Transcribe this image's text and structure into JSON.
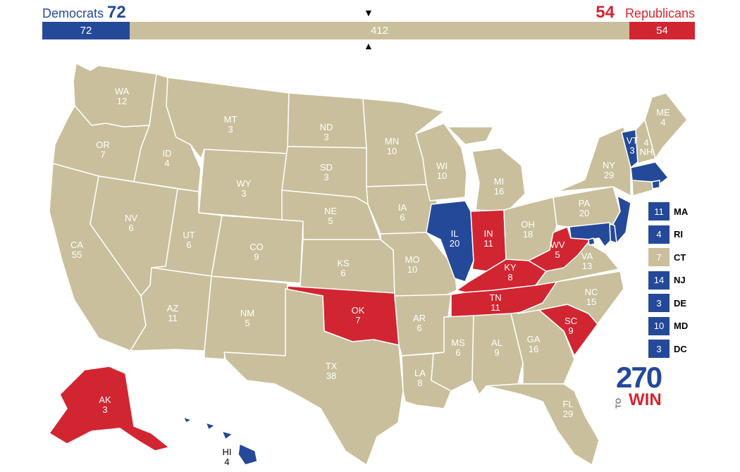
{
  "colors": {
    "dem": "#244999",
    "rep": "#d22532",
    "tossup": "#c9bf9c",
    "border": "#ffffff"
  },
  "header": {
    "dem_label": "Democrats",
    "dem_total": "72",
    "rep_total": "54",
    "rep_label": "Republicans"
  },
  "tally": {
    "dem": "72",
    "tossup": "412",
    "rep": "54",
    "dem_ev": 72,
    "tossup_ev": 412,
    "rep_ev": 54
  },
  "states": [
    {
      "abbr": "WA",
      "ev": "12",
      "party": "tossup"
    },
    {
      "abbr": "OR",
      "ev": "7",
      "party": "tossup"
    },
    {
      "abbr": "CA",
      "ev": "55",
      "party": "tossup"
    },
    {
      "abbr": "ID",
      "ev": "4",
      "party": "tossup"
    },
    {
      "abbr": "NV",
      "ev": "6",
      "party": "tossup"
    },
    {
      "abbr": "MT",
      "ev": "3",
      "party": "tossup"
    },
    {
      "abbr": "WY",
      "ev": "3",
      "party": "tossup"
    },
    {
      "abbr": "UT",
      "ev": "6",
      "party": "tossup"
    },
    {
      "abbr": "AZ",
      "ev": "11",
      "party": "tossup"
    },
    {
      "abbr": "CO",
      "ev": "9",
      "party": "tossup"
    },
    {
      "abbr": "NM",
      "ev": "5",
      "party": "tossup"
    },
    {
      "abbr": "ND",
      "ev": "3",
      "party": "tossup"
    },
    {
      "abbr": "SD",
      "ev": "3",
      "party": "tossup"
    },
    {
      "abbr": "NE",
      "ev": "5",
      "party": "tossup"
    },
    {
      "abbr": "KS",
      "ev": "6",
      "party": "tossup"
    },
    {
      "abbr": "OK",
      "ev": "7",
      "party": "rep"
    },
    {
      "abbr": "TX",
      "ev": "38",
      "party": "tossup"
    },
    {
      "abbr": "MN",
      "ev": "10",
      "party": "tossup"
    },
    {
      "abbr": "IA",
      "ev": "6",
      "party": "tossup"
    },
    {
      "abbr": "MO",
      "ev": "10",
      "party": "tossup"
    },
    {
      "abbr": "AR",
      "ev": "6",
      "party": "tossup"
    },
    {
      "abbr": "LA",
      "ev": "8",
      "party": "tossup"
    },
    {
      "abbr": "WI",
      "ev": "10",
      "party": "tossup"
    },
    {
      "abbr": "IL",
      "ev": "20",
      "party": "dem"
    },
    {
      "abbr": "MI",
      "ev": "16",
      "party": "tossup"
    },
    {
      "abbr": "IN",
      "ev": "11",
      "party": "rep"
    },
    {
      "abbr": "OH",
      "ev": "18",
      "party": "tossup"
    },
    {
      "abbr": "KY",
      "ev": "8",
      "party": "rep"
    },
    {
      "abbr": "TN",
      "ev": "11",
      "party": "rep"
    },
    {
      "abbr": "MS",
      "ev": "6",
      "party": "tossup"
    },
    {
      "abbr": "AL",
      "ev": "9",
      "party": "tossup"
    },
    {
      "abbr": "GA",
      "ev": "16",
      "party": "tossup"
    },
    {
      "abbr": "FL",
      "ev": "29",
      "party": "tossup"
    },
    {
      "abbr": "SC",
      "ev": "9",
      "party": "rep"
    },
    {
      "abbr": "NC",
      "ev": "15",
      "party": "tossup"
    },
    {
      "abbr": "VA",
      "ev": "13",
      "party": "tossup"
    },
    {
      "abbr": "WV",
      "ev": "5",
      "party": "rep"
    },
    {
      "abbr": "PA",
      "ev": "20",
      "party": "tossup"
    },
    {
      "abbr": "NY",
      "ev": "29",
      "party": "tossup"
    },
    {
      "abbr": "VT",
      "ev": "3",
      "party": "dem"
    },
    {
      "abbr": "NH",
      "ev": "4",
      "party": "tossup"
    },
    {
      "abbr": "ME",
      "ev": "4",
      "party": "tossup"
    },
    {
      "abbr": "AK",
      "ev": "3",
      "party": "rep"
    },
    {
      "abbr": "HI",
      "ev": "4",
      "party": "dem"
    }
  ],
  "northeast_legend": [
    {
      "abbr": "MA",
      "ev": "11",
      "party": "dem"
    },
    {
      "abbr": "RI",
      "ev": "4",
      "party": "dem"
    },
    {
      "abbr": "CT",
      "ev": "7",
      "party": "tossup"
    },
    {
      "abbr": "NJ",
      "ev": "14",
      "party": "dem"
    },
    {
      "abbr": "DE",
      "ev": "3",
      "party": "dem"
    },
    {
      "abbr": "MD",
      "ev": "10",
      "party": "dem"
    },
    {
      "abbr": "DC",
      "ev": "3",
      "party": "dem"
    }
  ],
  "logo": {
    "number": "270",
    "to": "TO",
    "win": "WIN"
  }
}
